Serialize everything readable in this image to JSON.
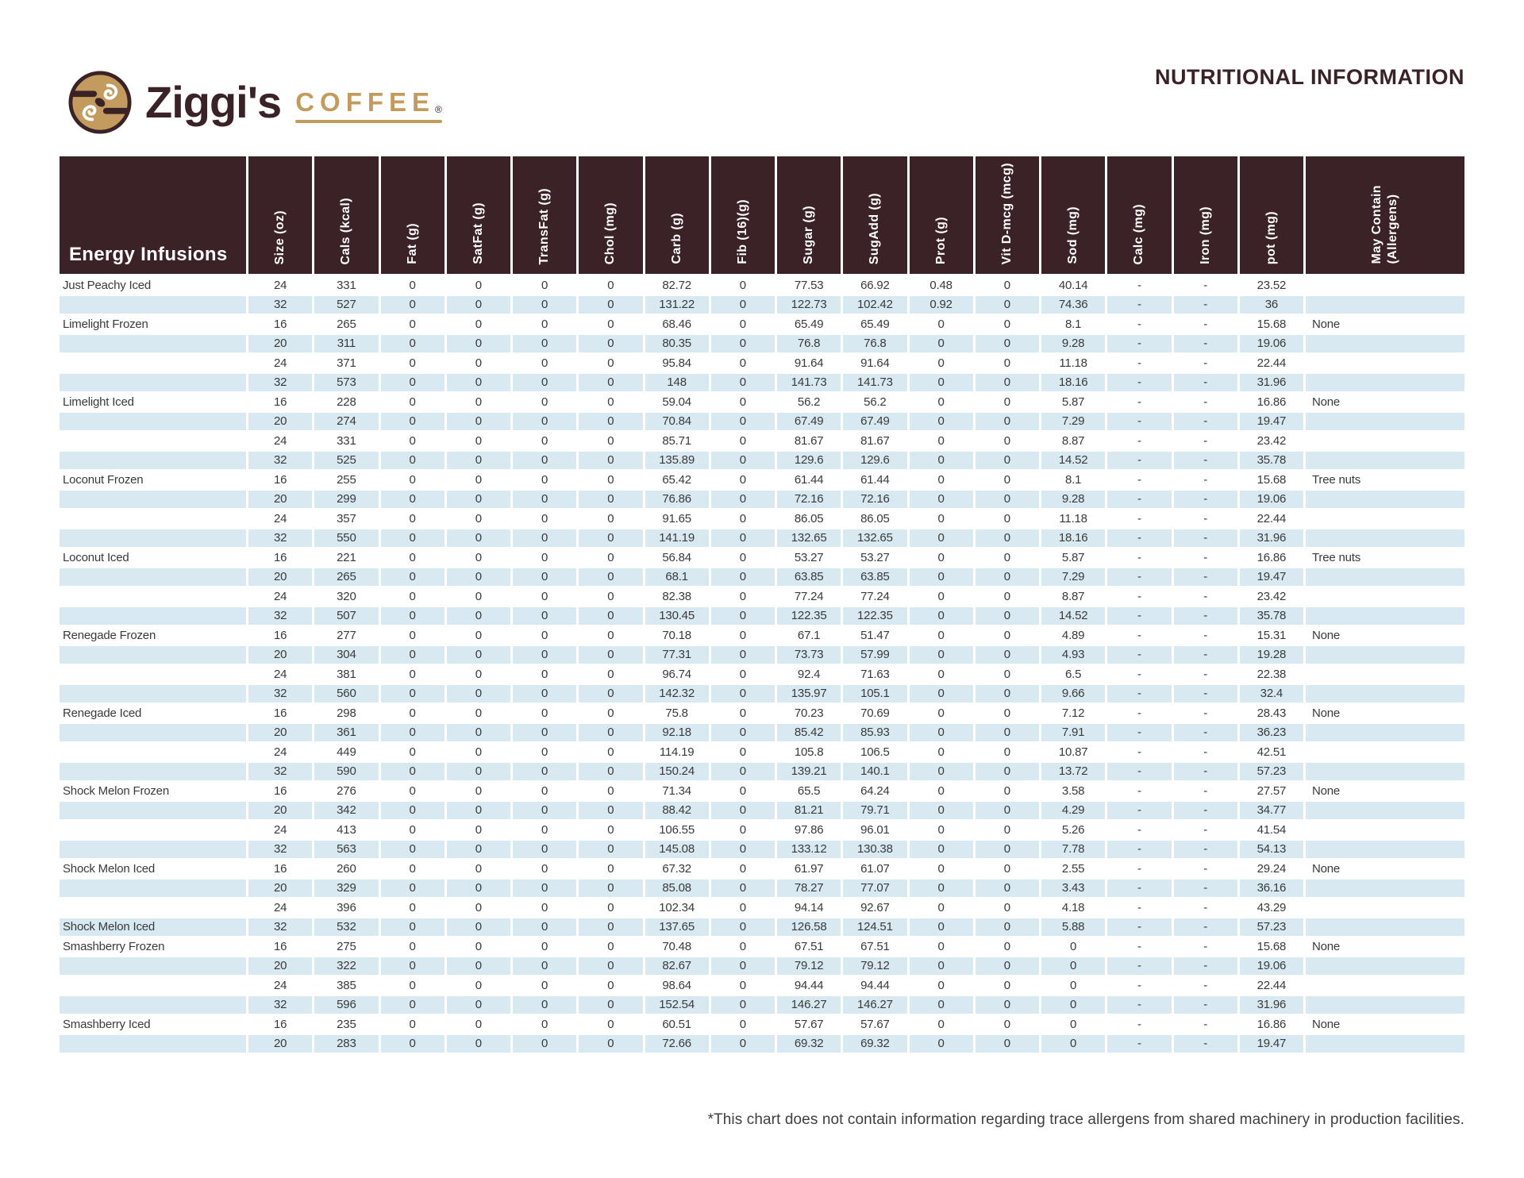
{
  "colors": {
    "brown": "#3B2226",
    "tan": "#C49B5F",
    "blue": "#D8E9F1",
    "ink": "#3A3A3A"
  },
  "header": {
    "brand_name": "Ziggi's",
    "brand_word": "COFFEE",
    "registered_mark": "®",
    "title": "NUTRITIONAL INFORMATION"
  },
  "table": {
    "first_column_header": "Energy Infusions",
    "columns": [
      "Size (oz)",
      "Cals (kcal)",
      "Fat (g)",
      "SatFat (g)",
      "TransFat (g)",
      "Chol (mg)",
      "Carb (g)",
      "Fib (16)(g)",
      "Sugar (g)",
      "SugAdd (g)",
      "Prot (g)",
      "Vit D-mcg (mcg)",
      "Sod (mg)",
      "Calc (mg)",
      "Iron (mg)",
      "pot (mg)",
      "May Contain\n(Allergens)"
    ],
    "rows": [
      {
        "name": "Just Peachy Iced",
        "values": [
          "24",
          "331",
          "0",
          "0",
          "0",
          "0",
          "82.72",
          "0",
          "77.53",
          "66.92",
          "0.48",
          "0",
          "40.14",
          "-",
          "-",
          "23.52"
        ],
        "allergens": ""
      },
      {
        "name": "",
        "values": [
          "32",
          "527",
          "0",
          "0",
          "0",
          "0",
          "131.22",
          "0",
          "122.73",
          "102.42",
          "0.92",
          "0",
          "74.36",
          "-",
          "-",
          "36"
        ],
        "allergens": ""
      },
      {
        "name": "Limelight Frozen",
        "values": [
          "16",
          "265",
          "0",
          "0",
          "0",
          "0",
          "68.46",
          "0",
          "65.49",
          "65.49",
          "0",
          "0",
          "8.1",
          "-",
          "-",
          "15.68"
        ],
        "allergens": "None"
      },
      {
        "name": "",
        "values": [
          "20",
          "311",
          "0",
          "0",
          "0",
          "0",
          "80.35",
          "0",
          "76.8",
          "76.8",
          "0",
          "0",
          "9.28",
          "-",
          "-",
          "19.06"
        ],
        "allergens": ""
      },
      {
        "name": "",
        "values": [
          "24",
          "371",
          "0",
          "0",
          "0",
          "0",
          "95.84",
          "0",
          "91.64",
          "91.64",
          "0",
          "0",
          "11.18",
          "-",
          "-",
          "22.44"
        ],
        "allergens": ""
      },
      {
        "name": "",
        "values": [
          "32",
          "573",
          "0",
          "0",
          "0",
          "0",
          "148",
          "0",
          "141.73",
          "141.73",
          "0",
          "0",
          "18.16",
          "-",
          "-",
          "31.96"
        ],
        "allergens": ""
      },
      {
        "name": "Limelight Iced",
        "values": [
          "16",
          "228",
          "0",
          "0",
          "0",
          "0",
          "59.04",
          "0",
          "56.2",
          "56.2",
          "0",
          "0",
          "5.87",
          "-",
          "-",
          "16.86"
        ],
        "allergens": "None"
      },
      {
        "name": "",
        "values": [
          "20",
          "274",
          "0",
          "0",
          "0",
          "0",
          "70.84",
          "0",
          "67.49",
          "67.49",
          "0",
          "0",
          "7.29",
          "-",
          "-",
          "19.47"
        ],
        "allergens": ""
      },
      {
        "name": "",
        "values": [
          "24",
          "331",
          "0",
          "0",
          "0",
          "0",
          "85.71",
          "0",
          "81.67",
          "81.67",
          "0",
          "0",
          "8.87",
          "-",
          "-",
          "23.42"
        ],
        "allergens": ""
      },
      {
        "name": "",
        "values": [
          "32",
          "525",
          "0",
          "0",
          "0",
          "0",
          "135.89",
          "0",
          "129.6",
          "129.6",
          "0",
          "0",
          "14.52",
          "-",
          "-",
          "35.78"
        ],
        "allergens": ""
      },
      {
        "name": "Loconut Frozen",
        "values": [
          "16",
          "255",
          "0",
          "0",
          "0",
          "0",
          "65.42",
          "0",
          "61.44",
          "61.44",
          "0",
          "0",
          "8.1",
          "-",
          "-",
          "15.68"
        ],
        "allergens": "Tree nuts"
      },
      {
        "name": "",
        "values": [
          "20",
          "299",
          "0",
          "0",
          "0",
          "0",
          "76.86",
          "0",
          "72.16",
          "72.16",
          "0",
          "0",
          "9.28",
          "-",
          "-",
          "19.06"
        ],
        "allergens": ""
      },
      {
        "name": "",
        "values": [
          "24",
          "357",
          "0",
          "0",
          "0",
          "0",
          "91.65",
          "0",
          "86.05",
          "86.05",
          "0",
          "0",
          "11.18",
          "-",
          "-",
          "22.44"
        ],
        "allergens": ""
      },
      {
        "name": "",
        "values": [
          "32",
          "550",
          "0",
          "0",
          "0",
          "0",
          "141.19",
          "0",
          "132.65",
          "132.65",
          "0",
          "0",
          "18.16",
          "-",
          "-",
          "31.96"
        ],
        "allergens": ""
      },
      {
        "name": "Loconut Iced",
        "values": [
          "16",
          "221",
          "0",
          "0",
          "0",
          "0",
          "56.84",
          "0",
          "53.27",
          "53.27",
          "0",
          "0",
          "5.87",
          "-",
          "-",
          "16.86"
        ],
        "allergens": "Tree nuts"
      },
      {
        "name": "",
        "values": [
          "20",
          "265",
          "0",
          "0",
          "0",
          "0",
          "68.1",
          "0",
          "63.85",
          "63.85",
          "0",
          "0",
          "7.29",
          "-",
          "-",
          "19.47"
        ],
        "allergens": ""
      },
      {
        "name": "",
        "values": [
          "24",
          "320",
          "0",
          "0",
          "0",
          "0",
          "82.38",
          "0",
          "77.24",
          "77.24",
          "0",
          "0",
          "8.87",
          "-",
          "-",
          "23.42"
        ],
        "allergens": ""
      },
      {
        "name": "",
        "values": [
          "32",
          "507",
          "0",
          "0",
          "0",
          "0",
          "130.45",
          "0",
          "122.35",
          "122.35",
          "0",
          "0",
          "14.52",
          "-",
          "-",
          "35.78"
        ],
        "allergens": ""
      },
      {
        "name": "Renegade Frozen",
        "values": [
          "16",
          "277",
          "0",
          "0",
          "0",
          "0",
          "70.18",
          "0",
          "67.1",
          "51.47",
          "0",
          "0",
          "4.89",
          "-",
          "-",
          "15.31"
        ],
        "allergens": "None"
      },
      {
        "name": "",
        "values": [
          "20",
          "304",
          "0",
          "0",
          "0",
          "0",
          "77.31",
          "0",
          "73.73",
          "57.99",
          "0",
          "0",
          "4.93",
          "-",
          "-",
          "19.28"
        ],
        "allergens": ""
      },
      {
        "name": "",
        "values": [
          "24",
          "381",
          "0",
          "0",
          "0",
          "0",
          "96.74",
          "0",
          "92.4",
          "71.63",
          "0",
          "0",
          "6.5",
          "-",
          "-",
          "22.38"
        ],
        "allergens": ""
      },
      {
        "name": "",
        "values": [
          "32",
          "560",
          "0",
          "0",
          "0",
          "0",
          "142.32",
          "0",
          "135.97",
          "105.1",
          "0",
          "0",
          "9.66",
          "-",
          "-",
          "32.4"
        ],
        "allergens": ""
      },
      {
        "name": "Renegade Iced",
        "values": [
          "16",
          "298",
          "0",
          "0",
          "0",
          "0",
          "75.8",
          "0",
          "70.23",
          "70.69",
          "0",
          "0",
          "7.12",
          "-",
          "-",
          "28.43"
        ],
        "allergens": "None"
      },
      {
        "name": "",
        "values": [
          "20",
          "361",
          "0",
          "0",
          "0",
          "0",
          "92.18",
          "0",
          "85.42",
          "85.93",
          "0",
          "0",
          "7.91",
          "-",
          "-",
          "36.23"
        ],
        "allergens": ""
      },
      {
        "name": "",
        "values": [
          "24",
          "449",
          "0",
          "0",
          "0",
          "0",
          "114.19",
          "0",
          "105.8",
          "106.5",
          "0",
          "0",
          "10.87",
          "-",
          "-",
          "42.51"
        ],
        "allergens": ""
      },
      {
        "name": "",
        "values": [
          "32",
          "590",
          "0",
          "0",
          "0",
          "0",
          "150.24",
          "0",
          "139.21",
          "140.1",
          "0",
          "0",
          "13.72",
          "-",
          "-",
          "57.23"
        ],
        "allergens": ""
      },
      {
        "name": "Shock Melon Frozen",
        "values": [
          "16",
          "276",
          "0",
          "0",
          "0",
          "0",
          "71.34",
          "0",
          "65.5",
          "64.24",
          "0",
          "0",
          "3.58",
          "-",
          "-",
          "27.57"
        ],
        "allergens": "None"
      },
      {
        "name": "",
        "values": [
          "20",
          "342",
          "0",
          "0",
          "0",
          "0",
          "88.42",
          "0",
          "81.21",
          "79.71",
          "0",
          "0",
          "4.29",
          "-",
          "-",
          "34.77"
        ],
        "allergens": ""
      },
      {
        "name": "",
        "values": [
          "24",
          "413",
          "0",
          "0",
          "0",
          "0",
          "106.55",
          "0",
          "97.86",
          "96.01",
          "0",
          "0",
          "5.26",
          "-",
          "-",
          "41.54"
        ],
        "allergens": ""
      },
      {
        "name": "",
        "values": [
          "32",
          "563",
          "0",
          "0",
          "0",
          "0",
          "145.08",
          "0",
          "133.12",
          "130.38",
          "0",
          "0",
          "7.78",
          "-",
          "-",
          "54.13"
        ],
        "allergens": ""
      },
      {
        "name": "Shock Melon Iced",
        "values": [
          "16",
          "260",
          "0",
          "0",
          "0",
          "0",
          "67.32",
          "0",
          "61.97",
          "61.07",
          "0",
          "0",
          "2.55",
          "-",
          "-",
          "29.24"
        ],
        "allergens": "None"
      },
      {
        "name": "",
        "values": [
          "20",
          "329",
          "0",
          "0",
          "0",
          "0",
          "85.08",
          "0",
          "78.27",
          "77.07",
          "0",
          "0",
          "3.43",
          "-",
          "-",
          "36.16"
        ],
        "allergens": ""
      },
      {
        "name": "",
        "values": [
          "24",
          "396",
          "0",
          "0",
          "0",
          "0",
          "102.34",
          "0",
          "94.14",
          "92.67",
          "0",
          "0",
          "4.18",
          "-",
          "-",
          "43.29"
        ],
        "allergens": ""
      },
      {
        "name": "Shock Melon Iced",
        "values": [
          "32",
          "532",
          "0",
          "0",
          "0",
          "0",
          "137.65",
          "0",
          "126.58",
          "124.51",
          "0",
          "0",
          "5.88",
          "-",
          "-",
          "57.23"
        ],
        "allergens": ""
      },
      {
        "name": "Smashberry Frozen",
        "values": [
          "16",
          "275",
          "0",
          "0",
          "0",
          "0",
          "70.48",
          "0",
          "67.51",
          "67.51",
          "0",
          "0",
          "0",
          "-",
          "-",
          "15.68"
        ],
        "allergens": "None"
      },
      {
        "name": "",
        "values": [
          "20",
          "322",
          "0",
          "0",
          "0",
          "0",
          "82.67",
          "0",
          "79.12",
          "79.12",
          "0",
          "0",
          "0",
          "-",
          "-",
          "19.06"
        ],
        "allergens": ""
      },
      {
        "name": "",
        "values": [
          "24",
          "385",
          "0",
          "0",
          "0",
          "0",
          "98.64",
          "0",
          "94.44",
          "94.44",
          "0",
          "0",
          "0",
          "-",
          "-",
          "22.44"
        ],
        "allergens": ""
      },
      {
        "name": "",
        "values": [
          "32",
          "596",
          "0",
          "0",
          "0",
          "0",
          "152.54",
          "0",
          "146.27",
          "146.27",
          "0",
          "0",
          "0",
          "-",
          "-",
          "31.96"
        ],
        "allergens": ""
      },
      {
        "name": "Smashberry Iced",
        "values": [
          "16",
          "235",
          "0",
          "0",
          "0",
          "0",
          "60.51",
          "0",
          "57.67",
          "57.67",
          "0",
          "0",
          "0",
          "-",
          "-",
          "16.86"
        ],
        "allergens": "None"
      },
      {
        "name": "",
        "values": [
          "20",
          "283",
          "0",
          "0",
          "0",
          "0",
          "72.66",
          "0",
          "69.32",
          "69.32",
          "0",
          "0",
          "0",
          "-",
          "-",
          "19.47"
        ],
        "allergens": ""
      }
    ]
  },
  "footnote": "*This chart does not contain information regarding trace allergens from shared machinery in production facilities."
}
